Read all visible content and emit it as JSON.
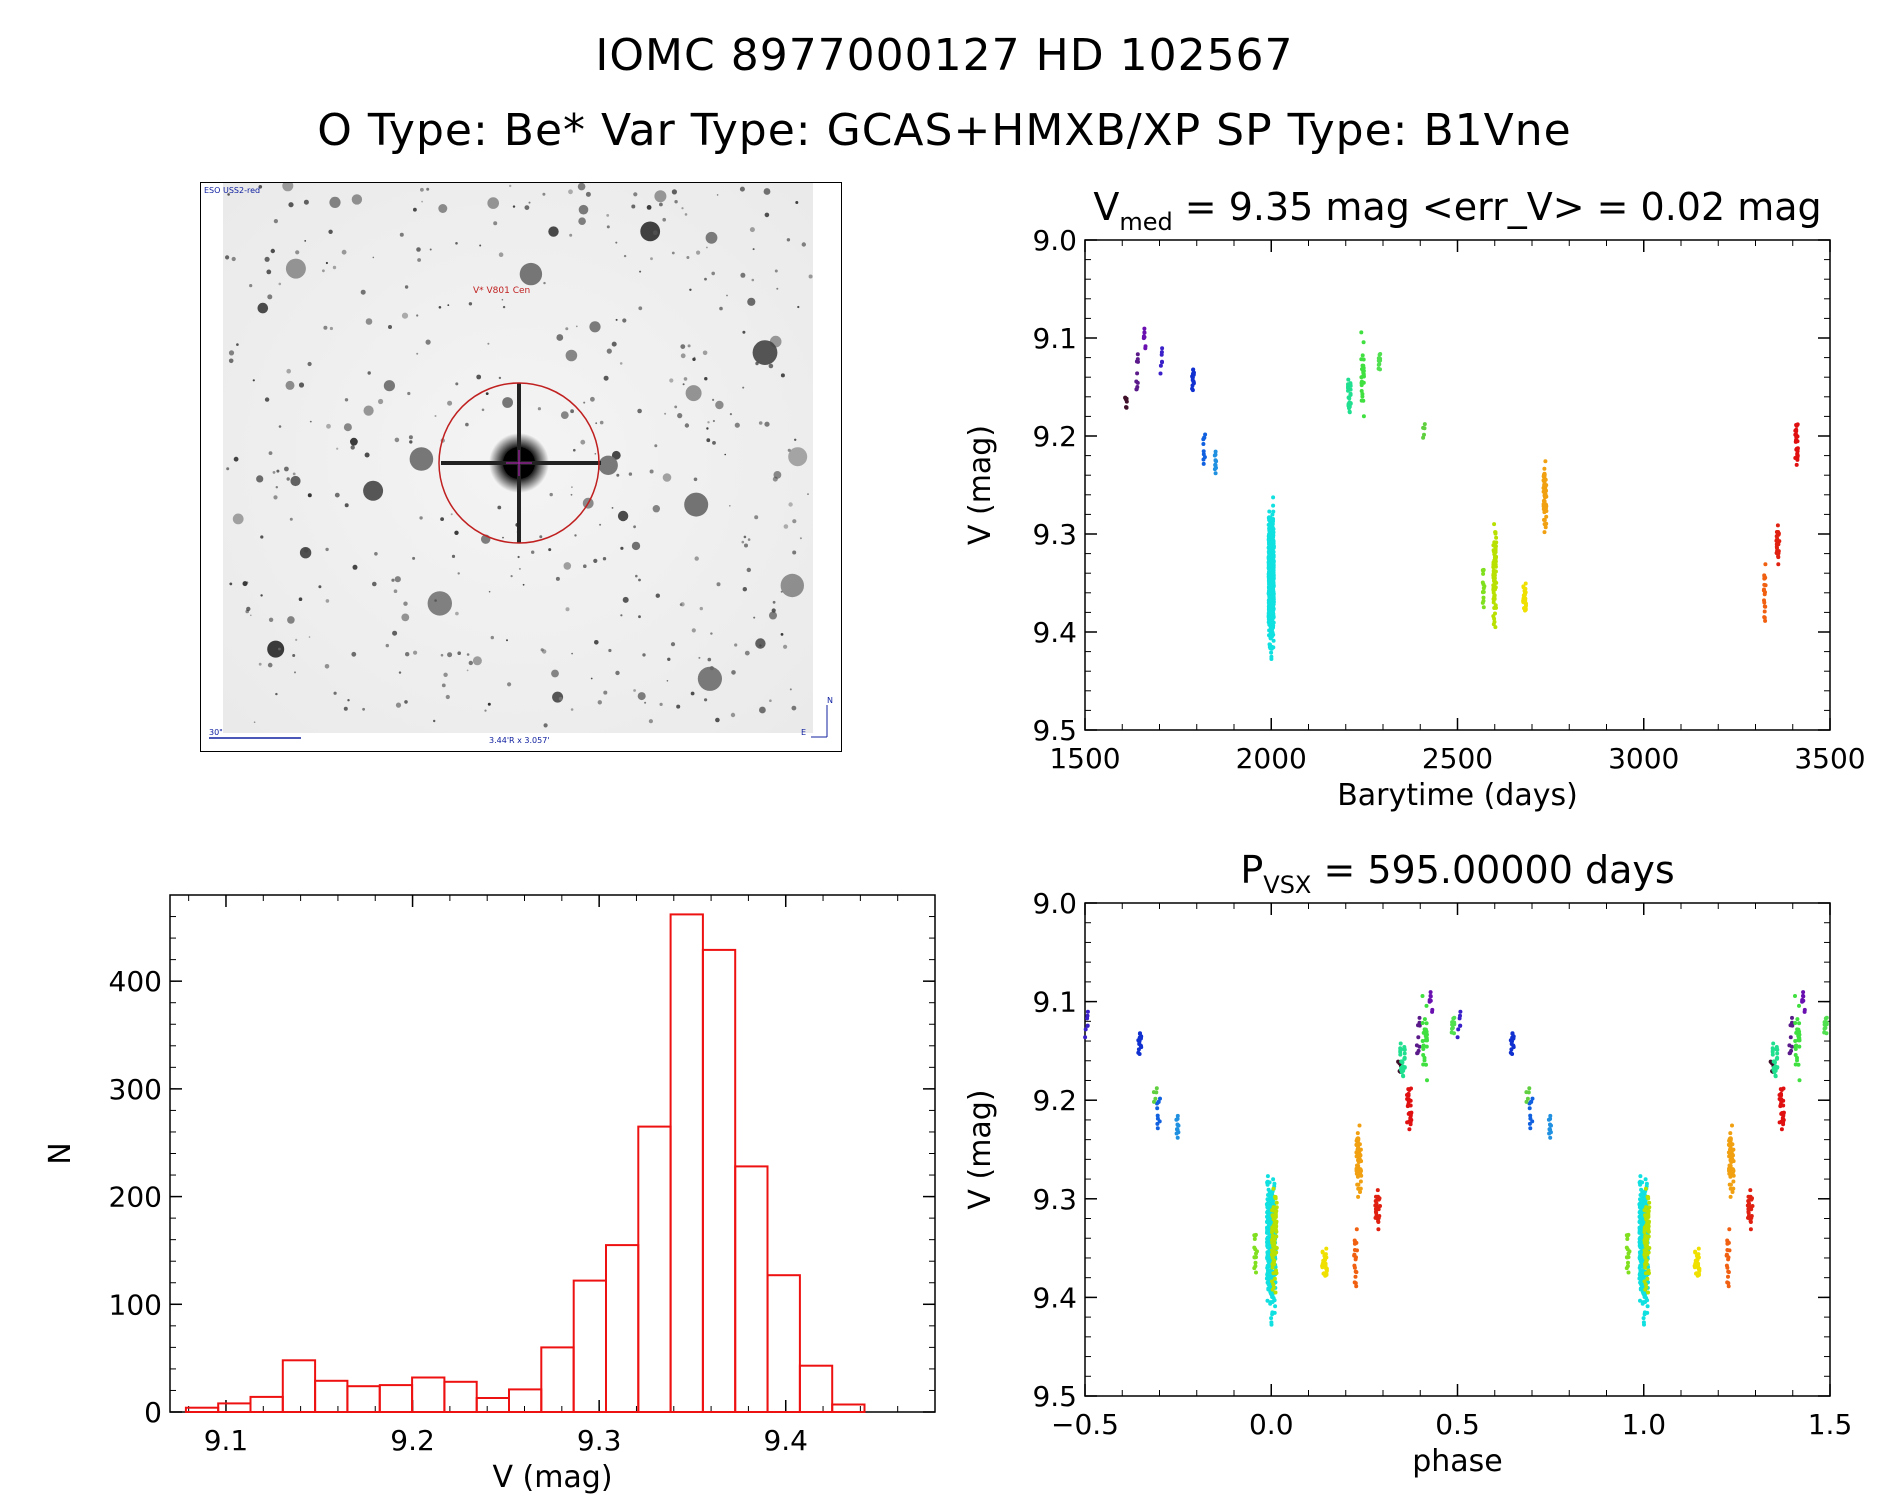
{
  "header": {
    "line1": "IOMC 8977000127   HD 102567",
    "line2": "O Type: Be*  Var Type: GCAS+HMXB/XP  SP Type: B1Vne"
  },
  "finder": {
    "survey": "ESO USS2-red",
    "target": "V* V801 Cen",
    "scale": "30\"",
    "fov": "3.44'R x 3.057'",
    "north": "N",
    "east": "E"
  },
  "chart_data": [
    {
      "type": "scatter",
      "name": "light-curve",
      "title": "V_med = 9.35 mag <err_V> = 0.02 mag",
      "title_parts": {
        "v": "V",
        "sub": "med",
        "rest": " = 9.35 mag <err_V> = 0.02 mag"
      },
      "xlabel": "Barytime (days)",
      "ylabel": "V (mag)",
      "xlim": [
        1500,
        3500
      ],
      "ylim": [
        9.5,
        9.0
      ],
      "xticks": [
        1500,
        2000,
        2500,
        3000,
        3500
      ],
      "xtick_labels": [
        "1500",
        "2000",
        "2500",
        "3000",
        "3500"
      ],
      "yticks": [
        9.0,
        9.1,
        9.2,
        9.3,
        9.4,
        9.5
      ],
      "ytick_labels": [
        "9.0",
        "9.1",
        "9.2",
        "9.3",
        "9.4",
        "9.5"
      ],
      "groups": [
        {
          "t": 1610,
          "min": 9.15,
          "max": 9.18,
          "n": 8,
          "color": "#40102a"
        },
        {
          "t": 1640,
          "min": 9.1,
          "max": 9.16,
          "n": 10,
          "color": "#5a1a8a"
        },
        {
          "t": 1660,
          "min": 9.07,
          "max": 9.13,
          "n": 8,
          "color": "#6a10b0"
        },
        {
          "t": 1705,
          "min": 9.09,
          "max": 9.15,
          "n": 7,
          "color": "#3a20c8"
        },
        {
          "t": 1790,
          "min": 9.12,
          "max": 9.16,
          "n": 20,
          "color": "#1030d0"
        },
        {
          "t": 1820,
          "min": 9.17,
          "max": 9.24,
          "n": 10,
          "color": "#1060e0"
        },
        {
          "t": 1850,
          "min": 9.2,
          "max": 9.25,
          "n": 12,
          "color": "#2090e0"
        },
        {
          "t": 2000,
          "min": 9.25,
          "max": 9.44,
          "n": 700,
          "color": "#10e0e0"
        },
        {
          "t": 2210,
          "min": 9.13,
          "max": 9.19,
          "n": 30,
          "color": "#20e090"
        },
        {
          "t": 2245,
          "min": 9.08,
          "max": 9.19,
          "n": 30,
          "color": "#40e040"
        },
        {
          "t": 2290,
          "min": 9.11,
          "max": 9.14,
          "n": 10,
          "color": "#50e050"
        },
        {
          "t": 2410,
          "min": 9.18,
          "max": 9.21,
          "n": 5,
          "color": "#60d040"
        },
        {
          "t": 2570,
          "min": 9.33,
          "max": 9.38,
          "n": 15,
          "color": "#80e020"
        },
        {
          "t": 2600,
          "min": 9.27,
          "max": 9.41,
          "n": 90,
          "color": "#b8e000"
        },
        {
          "t": 2680,
          "min": 9.34,
          "max": 9.39,
          "n": 30,
          "color": "#f0e000"
        },
        {
          "t": 2735,
          "min": 9.22,
          "max": 9.31,
          "n": 60,
          "color": "#f0a010"
        },
        {
          "t": 3325,
          "min": 9.32,
          "max": 9.4,
          "n": 20,
          "color": "#f06010"
        },
        {
          "t": 3360,
          "min": 9.28,
          "max": 9.35,
          "n": 25,
          "color": "#e02010"
        },
        {
          "t": 3410,
          "min": 9.17,
          "max": 9.25,
          "n": 30,
          "color": "#e01010"
        }
      ]
    },
    {
      "type": "bar",
      "name": "histogram",
      "title": "",
      "xlabel": "V (mag)",
      "ylabel": "N",
      "xlim": [
        9.07,
        9.48
      ],
      "ylim": [
        0,
        480
      ],
      "bin_width": 0.01732,
      "bin_start": 9.0785,
      "values": [
        4,
        8,
        14,
        48,
        29,
        24,
        25,
        32,
        28,
        13,
        21,
        60,
        122,
        155,
        265,
        462,
        429,
        228,
        127,
        43,
        7
      ],
      "bar_color": "#ee1111",
      "xticks": [
        9.1,
        9.2,
        9.3,
        9.4
      ],
      "xtick_labels": [
        "9.1",
        "9.2",
        "9.3",
        "9.4"
      ],
      "yticks": [
        0,
        100,
        200,
        300,
        400
      ],
      "ytick_labels": [
        "0",
        "100",
        "200",
        "300",
        "400"
      ]
    },
    {
      "type": "scatter",
      "name": "phase-curve",
      "title": "P_vsx = 595.00000 days",
      "title_parts": {
        "v": "P",
        "sub": "VSX",
        "rest": " = 595.00000 days"
      },
      "xlabel": "phase",
      "ylabel": "V (mag)",
      "xlim": [
        -0.5,
        1.5
      ],
      "ylim": [
        9.5,
        9.0
      ],
      "period": 595.0,
      "epoch": 2000,
      "xticks": [
        -0.5,
        0.0,
        0.5,
        1.0,
        1.5
      ],
      "xtick_labels": [
        "−0.5",
        "0.0",
        "0.5",
        "1.0",
        "1.5"
      ],
      "yticks": [
        9.0,
        9.1,
        9.2,
        9.3,
        9.4,
        9.5
      ],
      "ytick_labels": [
        "9.0",
        "9.1",
        "9.2",
        "9.3",
        "9.4",
        "9.5"
      ]
    }
  ]
}
